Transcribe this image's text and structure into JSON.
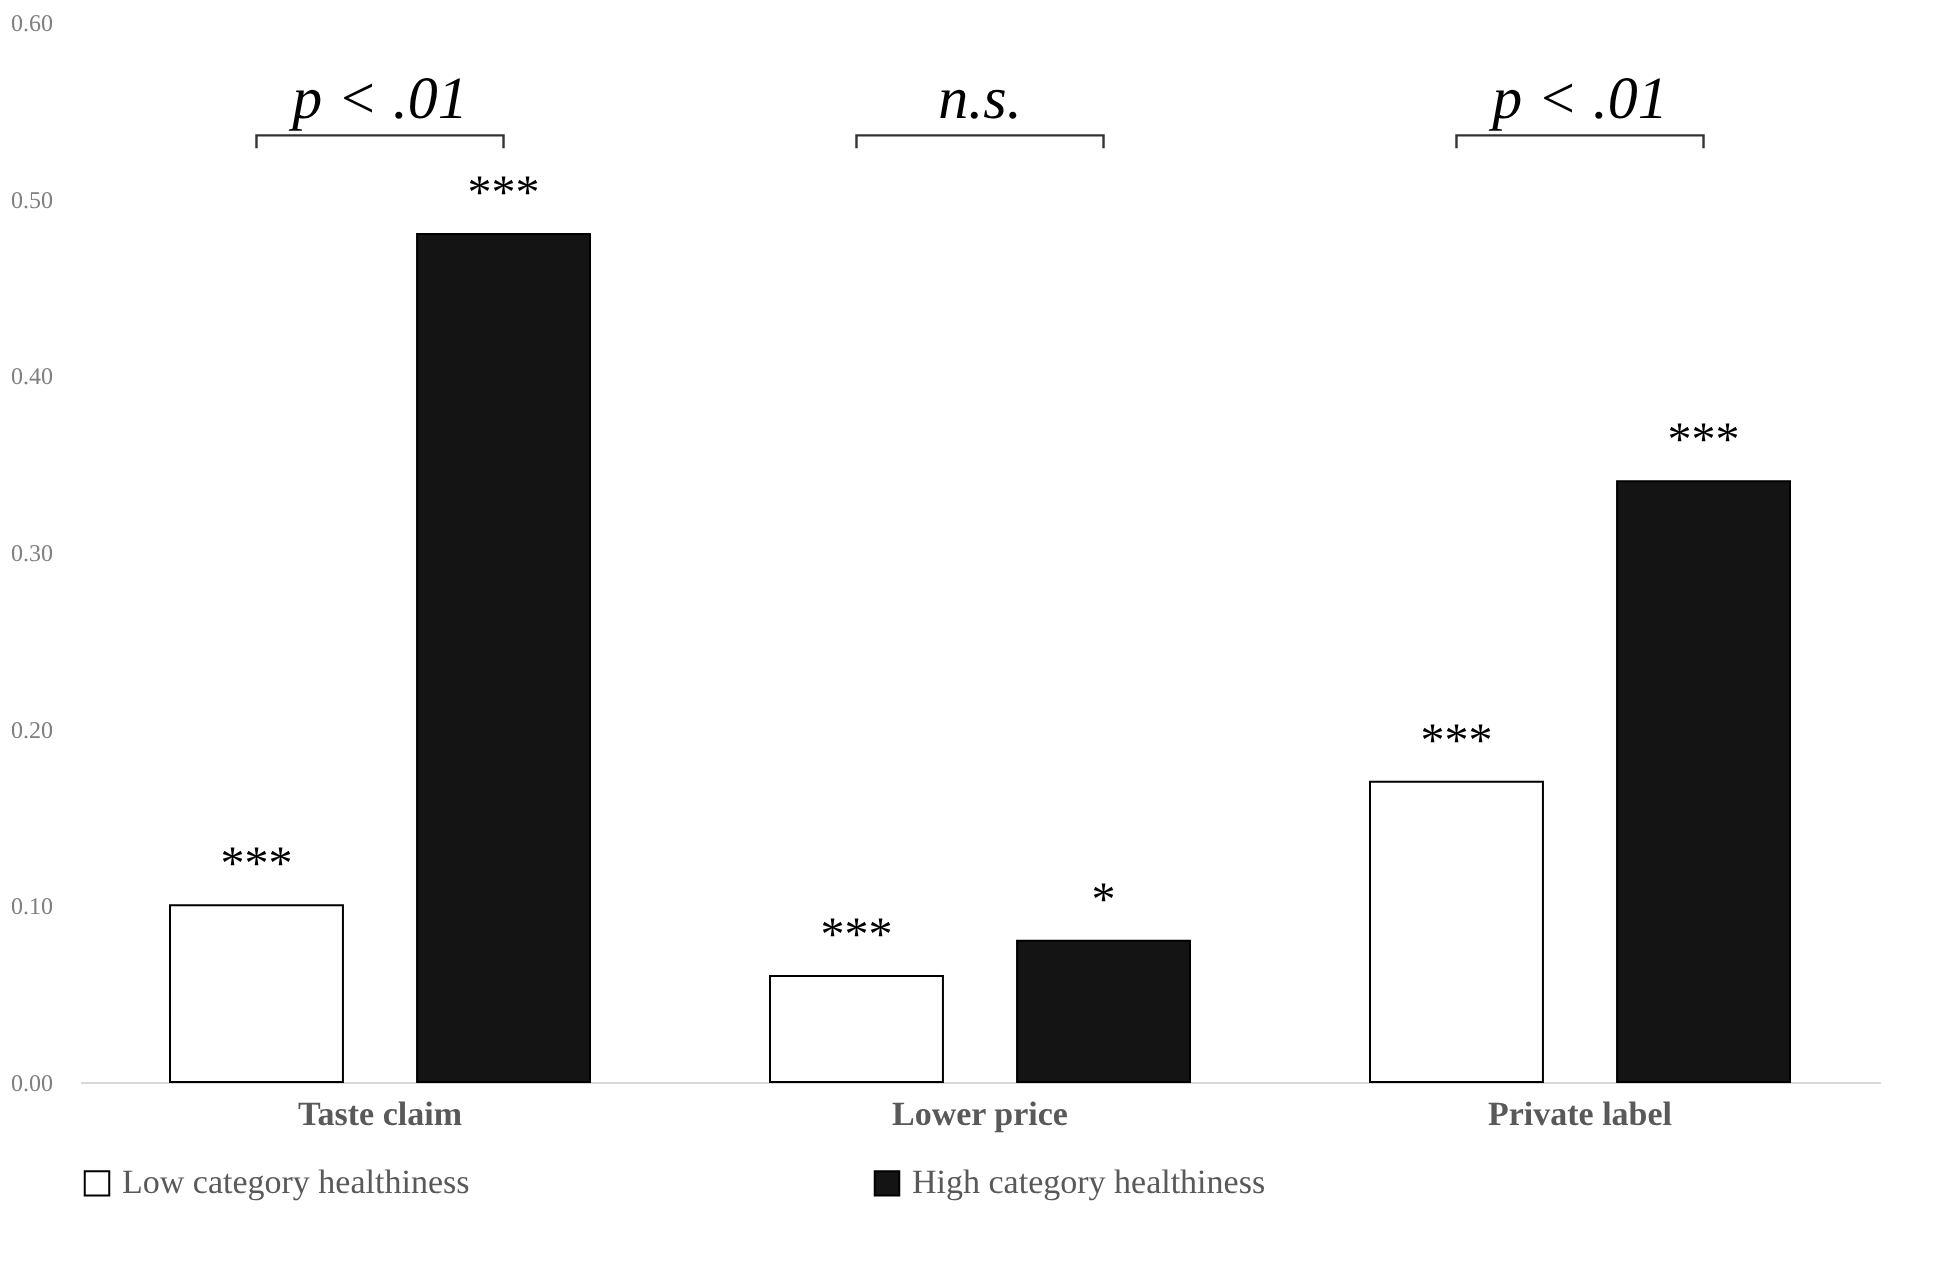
{
  "chart_data": {
    "type": "bar",
    "categories": [
      "Taste claim",
      "Lower price",
      "Private label"
    ],
    "series": [
      {
        "name": "Low category healthiness",
        "color": "#ffffff",
        "values": [
          0.1,
          0.06,
          0.17
        ],
        "value_labels": [
          "***",
          "***",
          "***"
        ]
      },
      {
        "name": "High category healthiness",
        "color": "#141414",
        "values": [
          0.48,
          0.08,
          0.34
        ],
        "value_labels": [
          "***",
          "*",
          "***"
        ]
      }
    ],
    "ylim": [
      0,
      0.6
    ],
    "yticks": [
      {
        "value": 0,
        "label": "0.00"
      },
      {
        "value": 0.1,
        "label": "0.10"
      },
      {
        "value": 0.2,
        "label": "0.20"
      },
      {
        "value": 0.3,
        "label": "0.30"
      },
      {
        "value": 0.4,
        "label": "0.40"
      },
      {
        "value": 0.5,
        "label": "0.50"
      },
      {
        "value": 0.6,
        "label": "0.60"
      }
    ],
    "grid": false,
    "legend": "bottom",
    "annotations": [
      "p < .01",
      "n.s.",
      "p < .01"
    ]
  }
}
